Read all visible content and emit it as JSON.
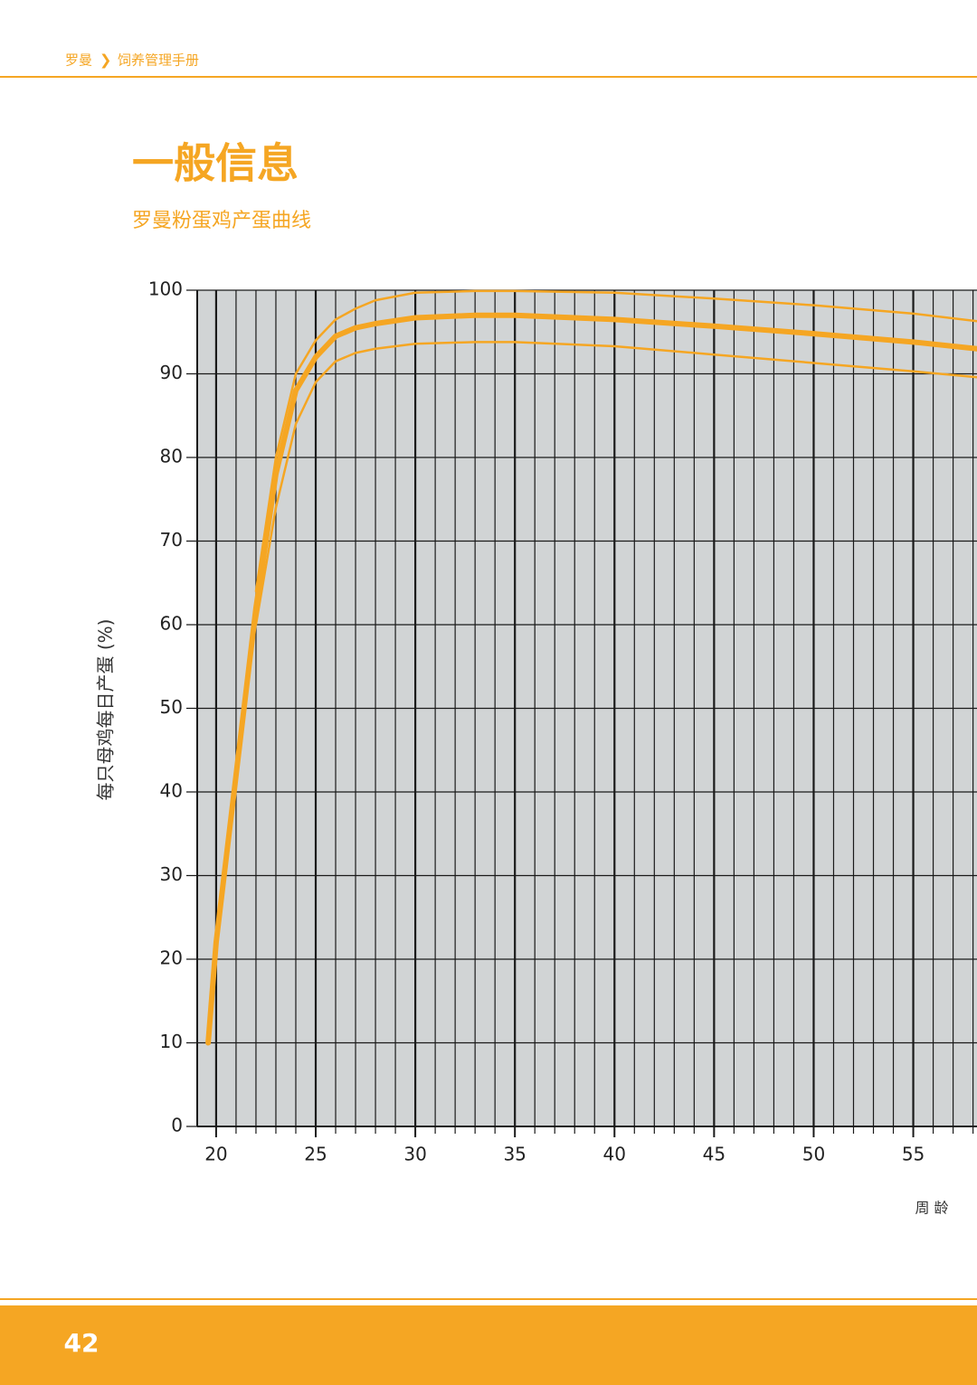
{
  "header": {
    "brand": "罗曼",
    "separator": "❯",
    "section": "饲养管理手册"
  },
  "title": "一般信息",
  "subtitle": "罗曼粉蛋鸡产蛋曲线",
  "page_number": "42",
  "chart_data": {
    "type": "line",
    "y_label": "每只母鸡每日产蛋 (%)",
    "x_label": "周 龄",
    "x": [
      19.6,
      20,
      21,
      22,
      23,
      24,
      25,
      26,
      27,
      28,
      30,
      33,
      35,
      40,
      45,
      50,
      55,
      58.2
    ],
    "series": [
      {
        "color": "#f5a623",
        "values": [
          null,
          null,
          null,
          64,
          80,
          90,
          94,
          96.5,
          97.8,
          98.8,
          99.7,
          99.9,
          99.9,
          99.7,
          99,
          98.2,
          97.2,
          96.3
        ]
      },
      {
        "color": "#f5a623",
        "values": [
          10,
          22,
          42,
          62,
          78,
          88,
          92,
          94.5,
          95.5,
          96,
          96.7,
          97,
          97,
          96.5,
          95.7,
          94.8,
          93.8,
          93
        ]
      },
      {
        "color": "#f5a623",
        "values": [
          null,
          null,
          null,
          60,
          74,
          84,
          89,
          91.5,
          92.5,
          93,
          93.6,
          93.8,
          93.8,
          93.3,
          92.3,
          91.3,
          90.3,
          89.6
        ]
      }
    ],
    "xlim": [
      19.05,
      58.2
    ],
    "ylim": [
      0,
      100
    ],
    "xticks": [
      20,
      25,
      30,
      35,
      40,
      45,
      50,
      55
    ],
    "x_gridlines": [
      20,
      21,
      22,
      23,
      24,
      25,
      26,
      27,
      28,
      29,
      30,
      31,
      32,
      33,
      34,
      35,
      36,
      37,
      38,
      39,
      40,
      41,
      42,
      43,
      44,
      45,
      46,
      47,
      48,
      49,
      50,
      51,
      52,
      53,
      54,
      55,
      56,
      57,
      58
    ],
    "yticks": [
      0,
      10,
      20,
      30,
      40,
      50,
      60,
      70,
      80,
      90,
      100
    ],
    "grid": true,
    "background": "#d1d4d5"
  }
}
